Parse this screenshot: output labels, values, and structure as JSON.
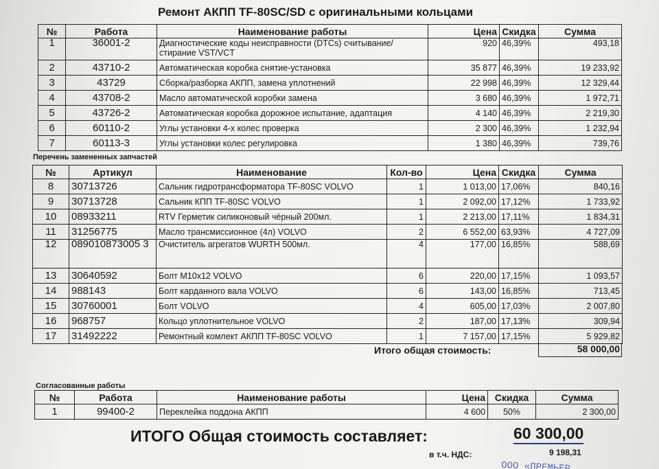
{
  "title": "Ремонт АКПП TF-80SC/SD с оригинальными кольцами",
  "works": {
    "headers": [
      "№",
      "Работа",
      "Наименование работы",
      "Цена",
      "Скидка",
      "Сумма"
    ],
    "rows": [
      [
        "1",
        "36001-2",
        "Диагностические коды неисправности (DTCs) считывание/ стирание VST/VCT",
        "920",
        "46,39%",
        "493,18"
      ],
      [
        "2",
        "43710-2",
        "Автоматическая коробка снятие-установка",
        "35 877",
        "46,39%",
        "19 233,92"
      ],
      [
        "3",
        "43729",
        "Сборка/разборка АКПП, замена уплотнений",
        "22 998",
        "46,39%",
        "12 329,44"
      ],
      [
        "4",
        "43708-2",
        "Масло автоматической коробки замена",
        "3 680",
        "46,39%",
        "1 972,71"
      ],
      [
        "5",
        "43726-2",
        "Автоматическая коробка дорожное испытание, адаптация",
        "4 140",
        "46,39%",
        "2 219,30"
      ],
      [
        "6",
        "60110-2",
        "Углы установки 4-х колес проверка",
        "2 300",
        "46,39%",
        "1 232,94"
      ],
      [
        "7",
        "60113-3",
        "Углы установки колес регулировка",
        "1 380",
        "46,39%",
        "739,76"
      ]
    ]
  },
  "parts": {
    "caption": "Перечень замененных запчастей",
    "headers": [
      "№",
      "Артикул",
      "Наименование",
      "Кол-во",
      "Цена",
      "Скидка",
      "Сумма"
    ],
    "rows": [
      [
        "8",
        "30713726",
        "Сальник гидротрансформатора TF-80SC VOLVO",
        "1",
        "1 013,00",
        "17,06%",
        "840,16"
      ],
      [
        "9",
        "30713728",
        "Сальник КПП TF-80SC VOLVO",
        "1",
        "2 092,00",
        "17,12%",
        "1 733,92"
      ],
      [
        "10",
        "08933211",
        "RTV Герметик силиконовый чёрный  200мл.",
        "1",
        "2 213,00",
        "17,11%",
        "1 834,31"
      ],
      [
        "11",
        "31256775",
        "Масло трансмиссионное (4л) VOLVO",
        "2",
        "6 552,00",
        "63,93%",
        "4 727,09"
      ],
      [
        "12",
        "089010873005 3",
        "Очиститель агрегатов WURTH 500мл.",
        "4",
        "177,00",
        "16,85%",
        "588,69"
      ],
      [
        "13",
        "30640592",
        "Болт M10x12 VOLVO",
        "6",
        "220,00",
        "17,15%",
        "1 093,57"
      ],
      [
        "14",
        "988143",
        "Болт карданного вала VOLVO",
        "6",
        "143,00",
        "16,85%",
        "713,45"
      ],
      [
        "15",
        "30760001",
        "Болт VOLVO",
        "4",
        "605,00",
        "17,03%",
        "2 007,80"
      ],
      [
        "16",
        "968757",
        "Кольцо уплотнительное VOLVO",
        "2",
        "187,00",
        "17,13%",
        "309,94"
      ],
      [
        "17",
        "31492222",
        "Ремонтный комлект АКПП TF-80SC VOLVO",
        "1",
        "7 157,00",
        "17,15%",
        "5 929,82"
      ]
    ],
    "total_label": "Итого общая стоимость:",
    "total_value": "58 000,00"
  },
  "agreed": {
    "caption": "Согласованные работы",
    "headers": [
      "№",
      "Работа",
      "Наименование работы",
      "Цена",
      "Скидка",
      "Сумма"
    ],
    "rows": [
      [
        "1",
        "99400-2",
        "Переклейка поддона АКПП",
        "4 600",
        "50%",
        "2 300,00"
      ]
    ]
  },
  "grand_total": {
    "label": "ИТОГО Общая стоимость  составляет:",
    "value": "60 300,00",
    "vat_label": "в т.ч. НДС:",
    "vat_value": "9 198,31"
  },
  "stamp": "ООО «ПРЕМЬЕР ..."
}
